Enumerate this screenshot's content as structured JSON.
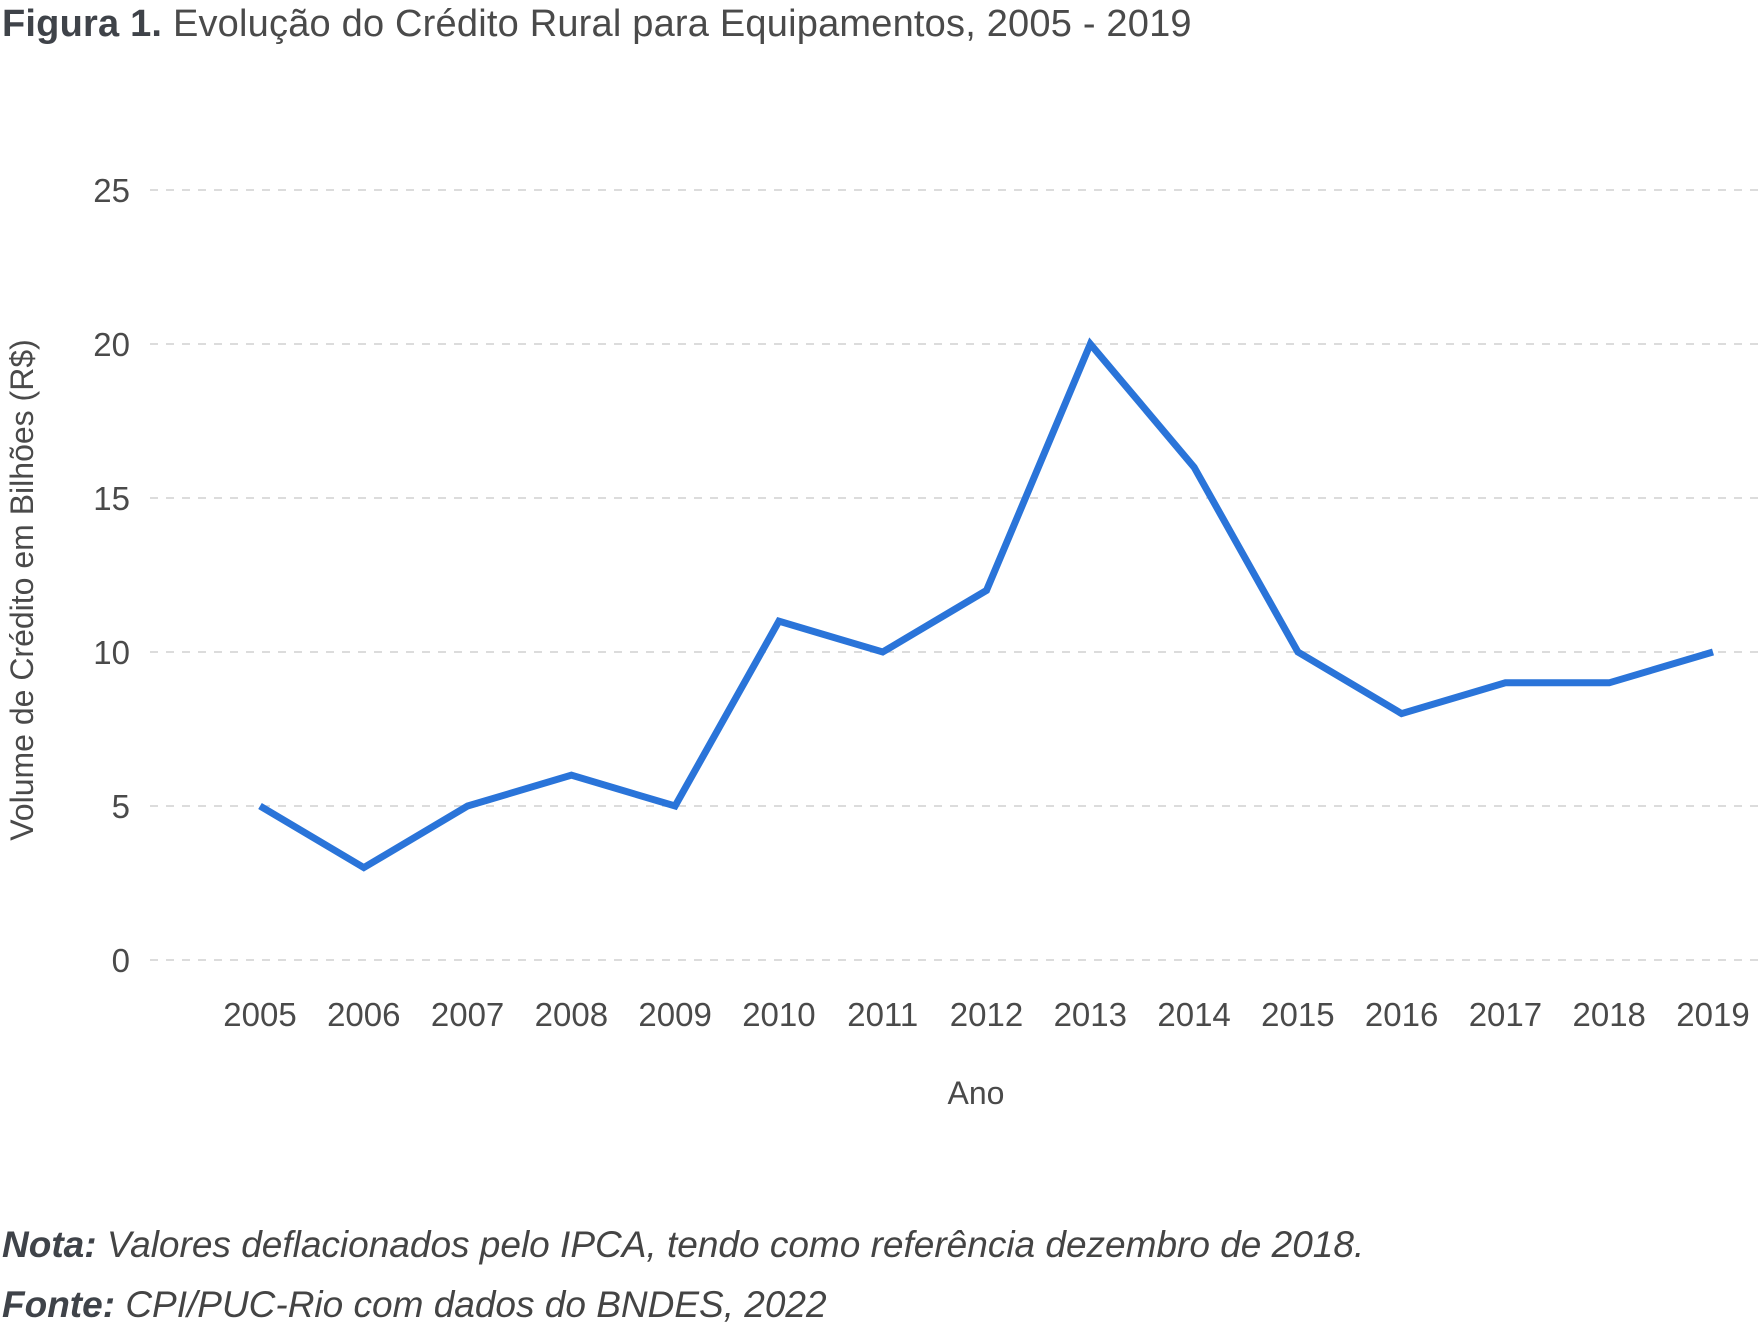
{
  "title": {
    "label": "Figura 1.",
    "text": "Evolução do Crédito Rural para Equipamentos, 2005 - 2019"
  },
  "chart_data": {
    "type": "line",
    "x": [
      "2005",
      "2006",
      "2007",
      "2008",
      "2009",
      "2010",
      "2011",
      "2012",
      "2013",
      "2014",
      "2015",
      "2016",
      "2017",
      "2018",
      "2019"
    ],
    "series": [
      {
        "values": [
          5,
          3,
          5,
          6,
          5,
          11,
          10,
          12,
          20,
          16,
          10,
          8,
          9,
          9,
          10
        ],
        "color": "#2a74d9"
      }
    ],
    "xlabel": "Ano",
    "ylabel": "Volume de Crédito em Bilhões (R$)",
    "ylim": [
      0,
      25
    ],
    "yticks": [
      0,
      5,
      10,
      15,
      20,
      25
    ],
    "grid": "horizontal dashed"
  },
  "notes": {
    "nota_label": "Nota:",
    "nota_text": "Valores deflacionados pelo IPCA, tendo como referência dezembro de 2018.",
    "fonte_label": "Fonte:",
    "fonte_text": "CPI/PUC-Rio com dados do BNDES, 2022"
  },
  "colors": {
    "line": "#2a74d9",
    "grid": "#d0d0d0",
    "text": "#4a4a4a"
  }
}
